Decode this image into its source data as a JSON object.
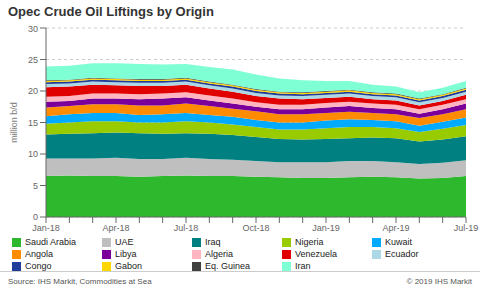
{
  "chart_data": {
    "type": "area",
    "stacked": true,
    "title": "Opec Crude Oil Liftings by Origin",
    "ylabel": "million b/d",
    "ylim": [
      0,
      30
    ],
    "yticks": [
      0,
      5,
      10,
      15,
      20,
      25,
      30
    ],
    "grid": true,
    "legend": "bottom",
    "annotations": [
      "Source: IHS Markit, Commodities at Sea",
      "© 2019 IHS Markit"
    ],
    "categories": [
      "Jan-18",
      null,
      null,
      "Apr-18",
      null,
      null,
      "Jul-18",
      null,
      null,
      "Oct-18",
      null,
      null,
      "Jan-19",
      null,
      null,
      "Apr-19",
      null,
      null,
      "Jul-19"
    ],
    "series": [
      {
        "name": "Saudi Arabia",
        "color": "#2db82d",
        "values": [
          6.5,
          6.6,
          6.5,
          6.5,
          6.4,
          6.5,
          6.6,
          6.5,
          6.5,
          6.4,
          6.3,
          6.2,
          6.2,
          6.3,
          6.4,
          6.3,
          6.1,
          6.2,
          6.5
        ]
      },
      {
        "name": "UAE",
        "color": "#bfbfbf",
        "values": [
          2.8,
          2.7,
          2.8,
          2.9,
          2.8,
          2.7,
          2.8,
          2.7,
          2.6,
          2.5,
          2.4,
          2.5,
          2.5,
          2.6,
          2.5,
          2.4,
          2.3,
          2.4,
          2.5
        ]
      },
      {
        "name": "Iraq",
        "color": "#008080",
        "values": [
          3.8,
          3.9,
          4.0,
          4.0,
          4.1,
          4.0,
          3.9,
          4.0,
          3.9,
          3.8,
          3.7,
          3.6,
          3.7,
          3.6,
          3.7,
          3.8,
          3.6,
          3.7,
          3.8
        ]
      },
      {
        "name": "Nigeria",
        "color": "#99cc00",
        "values": [
          1.7,
          1.8,
          1.9,
          1.8,
          1.7,
          1.8,
          1.9,
          1.8,
          1.7,
          1.6,
          1.5,
          1.6,
          1.7,
          1.8,
          1.7,
          1.6,
          1.5,
          1.7,
          1.8
        ]
      },
      {
        "name": "Kuwait",
        "color": "#00aaff",
        "values": [
          1.2,
          1.3,
          1.3,
          1.3,
          1.2,
          1.3,
          1.3,
          1.2,
          1.2,
          1.1,
          1.1,
          1.1,
          1.2,
          1.2,
          1.1,
          1.1,
          1.0,
          1.1,
          1.2
        ]
      },
      {
        "name": "Angola",
        "color": "#ff8c00",
        "values": [
          1.4,
          1.3,
          1.4,
          1.4,
          1.5,
          1.4,
          1.5,
          1.4,
          1.3,
          1.4,
          1.3,
          1.3,
          1.2,
          1.2,
          1.1,
          1.1,
          1.2,
          1.2,
          1.3
        ]
      },
      {
        "name": "Libya",
        "color": "#7b0099",
        "values": [
          0.9,
          0.8,
          0.9,
          0.9,
          1.0,
          1.1,
          1.0,
          0.9,
          0.8,
          0.7,
          0.8,
          0.8,
          0.9,
          0.9,
          0.8,
          0.8,
          0.7,
          0.8,
          0.9
        ]
      },
      {
        "name": "Algeria",
        "color": "#ffb6c1",
        "values": [
          0.8,
          0.8,
          0.8,
          0.8,
          0.8,
          0.8,
          0.8,
          0.8,
          0.8,
          0.7,
          0.7,
          0.7,
          0.7,
          0.7,
          0.7,
          0.7,
          0.7,
          0.7,
          0.7
        ]
      },
      {
        "name": "Venezuela",
        "color": "#e00000",
        "values": [
          1.5,
          1.5,
          1.4,
          1.3,
          1.3,
          1.2,
          1.2,
          1.1,
          1.1,
          1.0,
          1.0,
          0.9,
          0.8,
          0.8,
          0.7,
          0.7,
          0.6,
          0.6,
          0.7
        ]
      },
      {
        "name": "Ecuador",
        "color": "#add8e6",
        "values": [
          0.5,
          0.5,
          0.5,
          0.5,
          0.5,
          0.5,
          0.5,
          0.5,
          0.5,
          0.5,
          0.5,
          0.5,
          0.5,
          0.5,
          0.5,
          0.5,
          0.5,
          0.5,
          0.5
        ]
      },
      {
        "name": "Congo",
        "color": "#1f3d99",
        "values": [
          0.3,
          0.3,
          0.3,
          0.3,
          0.3,
          0.3,
          0.3,
          0.3,
          0.3,
          0.3,
          0.3,
          0.3,
          0.3,
          0.3,
          0.3,
          0.3,
          0.3,
          0.3,
          0.3
        ]
      },
      {
        "name": "Gabon",
        "color": "#ffd700",
        "values": [
          0.2,
          0.2,
          0.2,
          0.2,
          0.2,
          0.2,
          0.2,
          0.2,
          0.2,
          0.2,
          0.2,
          0.2,
          0.2,
          0.2,
          0.2,
          0.2,
          0.2,
          0.2,
          0.2
        ]
      },
      {
        "name": "Eq. Guinea",
        "color": "#404040",
        "values": [
          0.1,
          0.1,
          0.1,
          0.1,
          0.1,
          0.1,
          0.1,
          0.1,
          0.1,
          0.1,
          0.1,
          0.1,
          0.1,
          0.1,
          0.1,
          0.1,
          0.1,
          0.1,
          0.1
        ]
      },
      {
        "name": "Iran",
        "color": "#7fffd4",
        "values": [
          2.2,
          2.2,
          2.3,
          2.4,
          2.4,
          2.3,
          2.2,
          2.3,
          2.4,
          2.3,
          2.1,
          1.9,
          1.6,
          1.4,
          1.2,
          1.1,
          1.0,
          1.0,
          1.1
        ]
      }
    ]
  }
}
